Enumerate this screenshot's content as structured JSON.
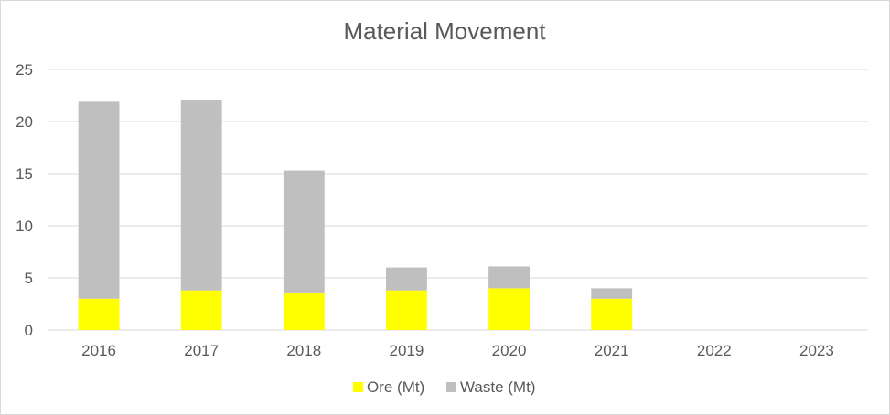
{
  "chart_data": {
    "type": "bar",
    "stacked": true,
    "title": "Material Movement",
    "xlabel": "",
    "ylabel": "",
    "categories": [
      "2016",
      "2017",
      "2018",
      "2019",
      "2020",
      "2021",
      "2022",
      "2023"
    ],
    "series": [
      {
        "name": "Ore (Mt)",
        "color": "#ffff00",
        "values": [
          3.0,
          3.8,
          3.6,
          3.8,
          4.0,
          3.0,
          0,
          0
        ]
      },
      {
        "name": "Waste (Mt)",
        "color": "#bfbfbf",
        "values": [
          18.9,
          18.3,
          11.7,
          2.2,
          2.1,
          1.0,
          0,
          0
        ]
      }
    ],
    "ylim": [
      0,
      25
    ],
    "yticks": [
      0,
      5,
      10,
      15,
      20,
      25
    ],
    "grid": true,
    "legend_position": "bottom"
  },
  "colors": {
    "gridline": "#d9d9d9",
    "text": "#595959",
    "border": "#d9d9d9"
  }
}
